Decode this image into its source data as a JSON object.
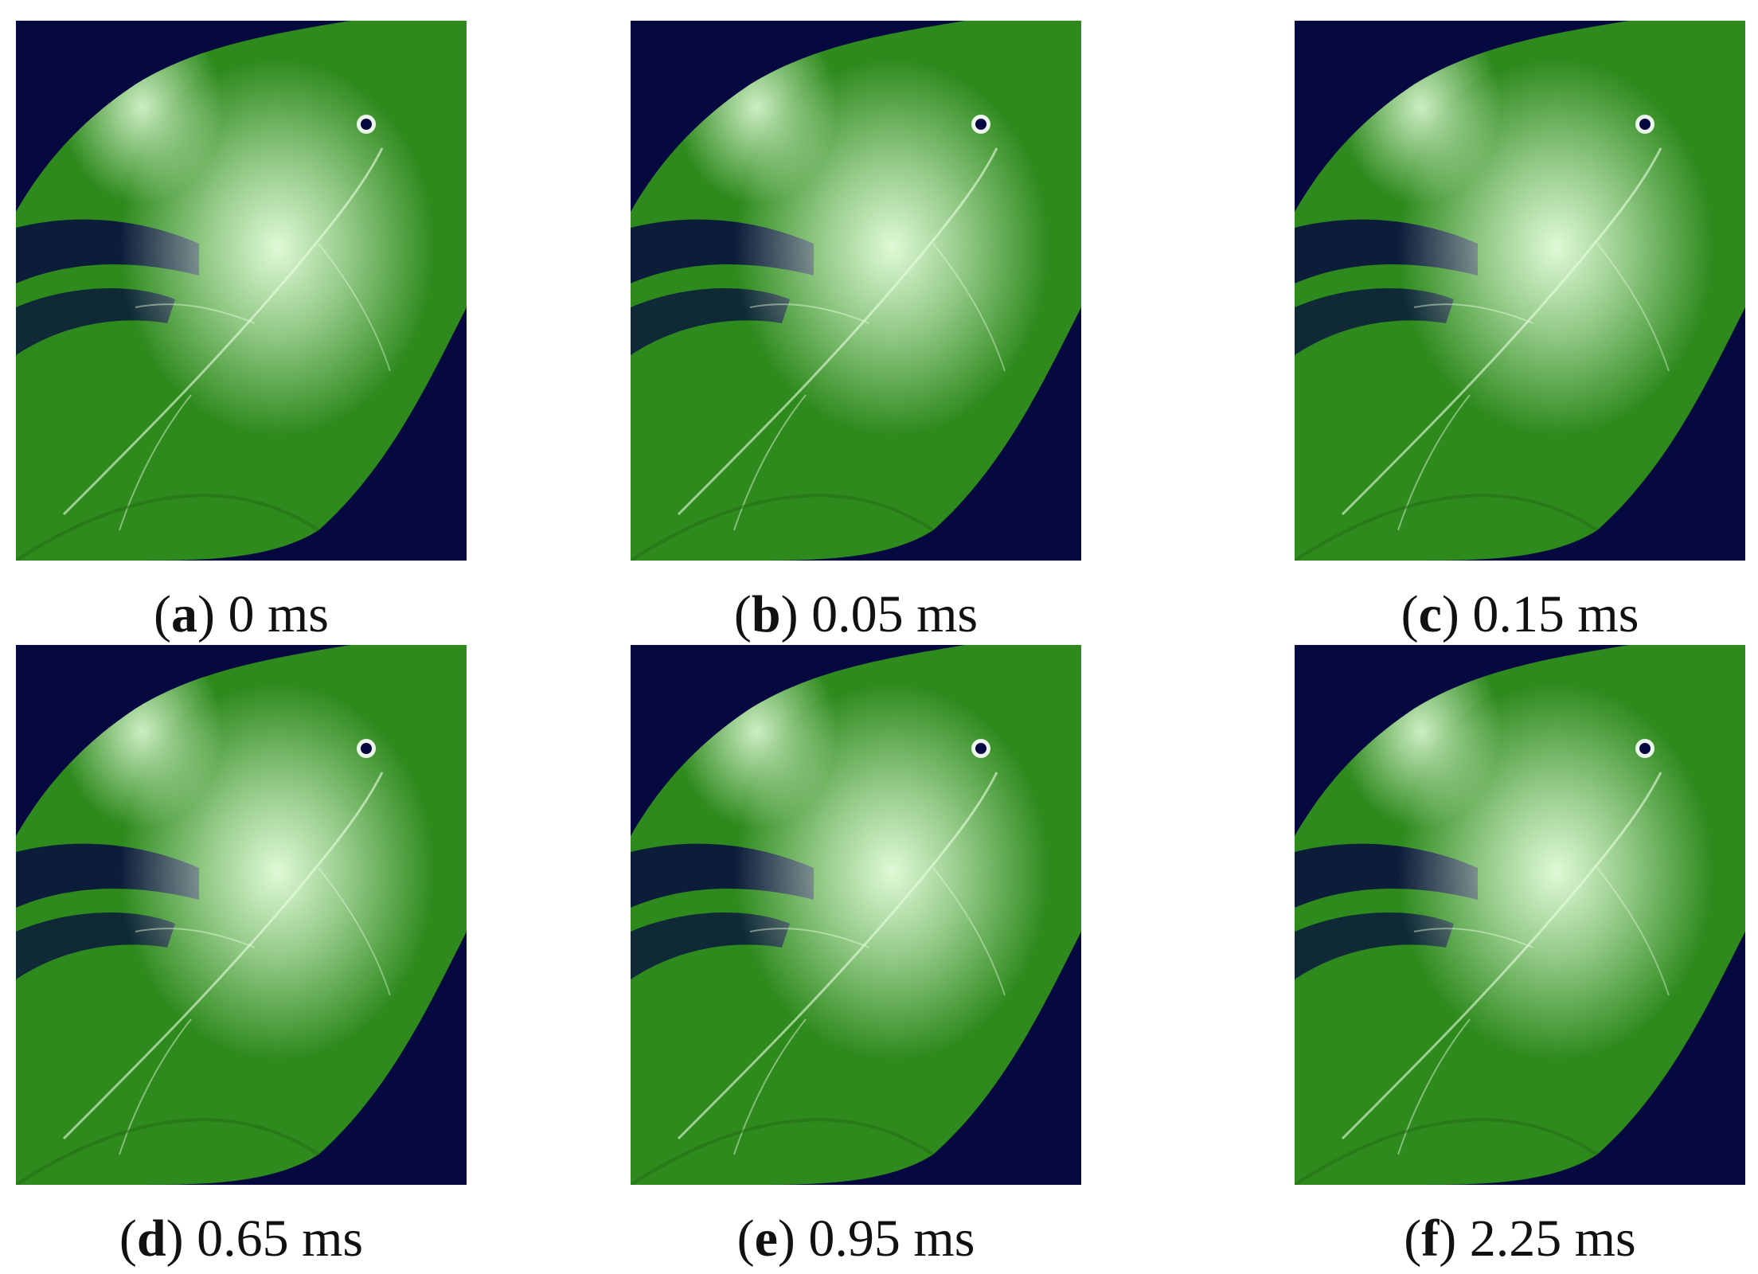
{
  "figure": {
    "panels": [
      {
        "letter": "a",
        "time": "0 ms"
      },
      {
        "letter": "b",
        "time": "0.05 ms"
      },
      {
        "letter": "c",
        "time": "0.15 ms"
      },
      {
        "letter": "d",
        "time": "0.65 ms"
      },
      {
        "letter": "e",
        "time": "0.95 ms"
      },
      {
        "letter": "f",
        "time": "2.25 ms"
      }
    ]
  },
  "colors": {
    "background": "#06093f",
    "leaf": "#2e8a1d",
    "leaf_dark": "#1f6a12",
    "highlight": "#e8ffe0"
  }
}
